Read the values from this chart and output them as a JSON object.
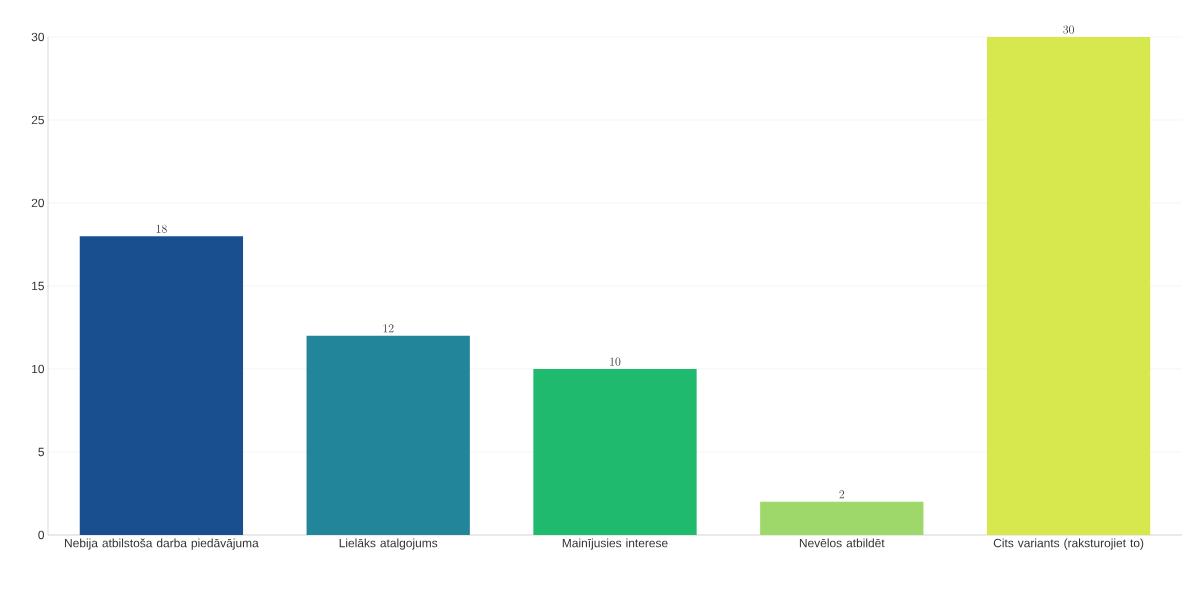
{
  "chart_data": {
    "type": "bar",
    "categories": [
      "Nebija atbilstoša darba piedāvājuma",
      "Lielāks atalgojums",
      "Mainījusies interese",
      "Nevēlos atbildēt",
      "Cits variants (raksturojiet to)"
    ],
    "values": [
      18,
      12,
      10,
      2,
      30
    ],
    "colors": [
      "#1a4f8f",
      "#23859a",
      "#1fba6e",
      "#9fd86a",
      "#d7e84f"
    ],
    "ylim": [
      0,
      30
    ],
    "yticks": [
      0,
      5,
      10,
      15,
      20,
      25,
      30
    ],
    "grid": "y",
    "data_labels": true
  }
}
